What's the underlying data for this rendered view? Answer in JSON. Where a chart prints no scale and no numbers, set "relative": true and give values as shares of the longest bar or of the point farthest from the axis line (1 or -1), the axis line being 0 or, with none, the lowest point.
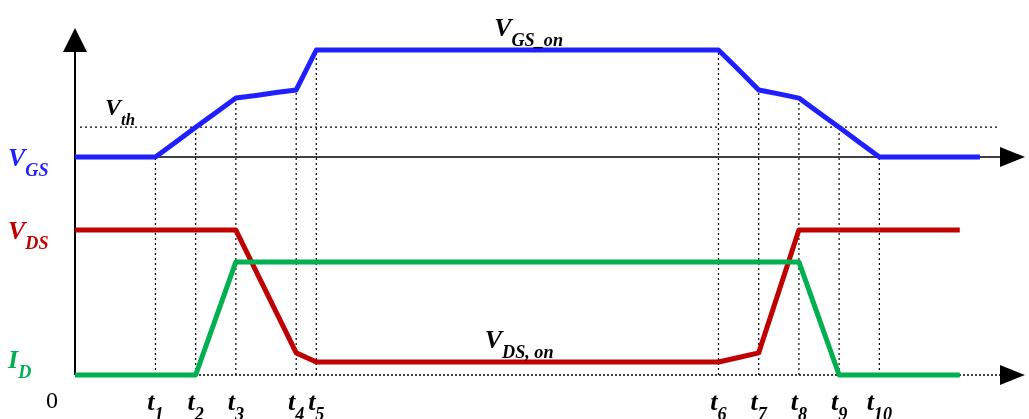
{
  "chart_data": {
    "type": "line",
    "relative": true,
    "categories": [
      null,
      null,
      null,
      null,
      "t$_{1}$",
      null,
      "t$_{2}$",
      null,
      "t$_{3}$",
      null,
      null,
      "t$_{4}$",
      "t$_{5}$",
      null,
      null,
      null,
      null,
      null,
      null,
      null,
      null,
      null,
      null,
      null,
      null,
      null,
      null,
      null,
      null,
      null,
      null,
      null,
      "t$_{6}$",
      null,
      "t$_{7}$",
      null,
      "t$_{8}$",
      null,
      "t$_{9}$",
      null,
      "t$_{10}$",
      null,
      null,
      null,
      null,
      null,
      null
    ],
    "series": [
      {
        "name": "V$_{GS}$",
        "color": "#1f1fff",
        "values": [
          0.671,
          0.671,
          0.671,
          0.671,
          0.671,
          0.716,
          0.762,
          0.807,
          0.852,
          0.86,
          0.869,
          0.877,
          1,
          1,
          1,
          1,
          1,
          1,
          1,
          1,
          1,
          1,
          1,
          1,
          1,
          1,
          1,
          1,
          1,
          1,
          1,
          1,
          1,
          0.939,
          0.877,
          0.865,
          0.852,
          0.807,
          0.762,
          0.716,
          0.671,
          0.671,
          0.671,
          0.671,
          0.671,
          0.671,
          null
        ]
      },
      {
        "name": "V$_{DS}$",
        "color": "#c00000",
        "values": [
          0.446,
          0.446,
          0.446,
          0.446,
          0.446,
          0.446,
          0.446,
          0.446,
          0.446,
          0.32,
          0.194,
          0.068,
          0.04,
          0.04,
          0.04,
          0.04,
          0.04,
          0.04,
          0.04,
          0.04,
          0.04,
          0.04,
          0.04,
          0.04,
          0.04,
          0.04,
          0.04,
          0.04,
          0.04,
          0.04,
          0.04,
          0.04,
          0.04,
          0.054,
          0.068,
          0.257,
          0.446,
          0.446,
          0.446,
          0.446,
          0.446,
          0.446,
          0.446,
          0.446,
          0.446,
          null,
          null
        ]
      },
      {
        "name": "I$_{D}$",
        "color": "#00b050",
        "values": [
          0,
          0,
          0,
          0,
          0,
          0,
          0,
          0.174,
          0.348,
          0.348,
          0.348,
          0.348,
          0.348,
          0.348,
          0.348,
          0.348,
          0.348,
          0.348,
          0.348,
          0.348,
          0.348,
          0.348,
          0.348,
          0.348,
          0.348,
          0.348,
          0.348,
          0.348,
          0.348,
          0.348,
          0.348,
          0.348,
          0.348,
          0.348,
          0.348,
          0.348,
          0.348,
          0.174,
          0,
          0,
          0,
          0,
          0,
          0,
          0,
          null,
          null
        ]
      }
    ],
    "ref_lines": [
      {
        "axis": "y",
        "value": 0.763,
        "label": "V$_{th}$",
        "line_style": "dotted"
      },
      {
        "axis": "y",
        "value": 0.671,
        "line_style": "solid"
      },
      {
        "axis": "x",
        "value": "t$_{1}$",
        "line_style": "dotted"
      },
      {
        "axis": "x",
        "value": "t$_{2}$",
        "line_style": "dotted"
      },
      {
        "axis": "x",
        "value": "t$_{3}$",
        "line_style": "dotted"
      },
      {
        "axis": "x",
        "value": "t$_{4}$",
        "line_style": "dotted"
      },
      {
        "axis": "x",
        "value": "t$_{5}$",
        "line_style": "dotted"
      },
      {
        "axis": "x",
        "value": "t$_{6}$",
        "line_style": "dotted"
      },
      {
        "axis": "x",
        "value": "t$_{7}$",
        "line_style": "dotted"
      },
      {
        "axis": "x",
        "value": "t$_{8}$",
        "line_style": "dotted"
      },
      {
        "axis": "x",
        "value": "t$_{9}$",
        "line_style": "dotted"
      },
      {
        "axis": "x",
        "value": "t$_{10}$",
        "line_style": "dotted"
      }
    ],
    "annotations": [
      "V$_{GS_on}$",
      "V$_{DS, on}$",
      "0"
    ]
  }
}
